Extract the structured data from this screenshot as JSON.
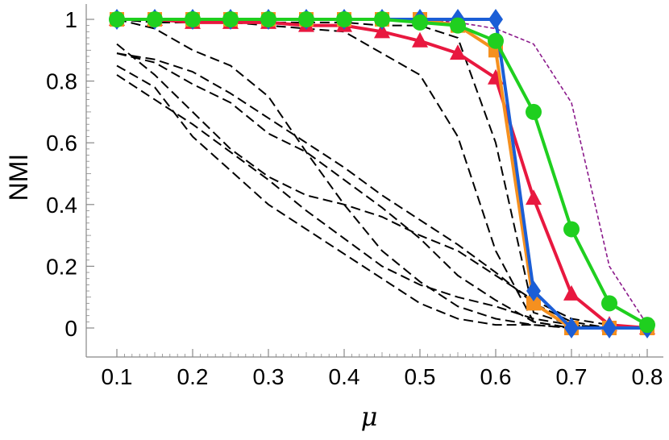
{
  "chart_data": {
    "type": "line",
    "xlabel": "μ",
    "ylabel": "NMI",
    "xlim": [
      0.1,
      0.8
    ],
    "ylim": [
      0,
      1
    ],
    "grid": false,
    "legend": "none",
    "x_ticks": [
      "0.1",
      "0.2",
      "0.3",
      "0.4",
      "0.5",
      "0.6",
      "0.7",
      "0.8"
    ],
    "y_ticks": [
      "0",
      "0.2",
      "0.4",
      "0.6",
      "0.8",
      "1"
    ],
    "x": [
      0.1,
      0.15,
      0.2,
      0.25,
      0.3,
      0.35,
      0.4,
      0.45,
      0.5,
      0.55,
      0.6,
      0.65,
      0.7,
      0.75,
      0.8
    ],
    "series": [
      {
        "color": "#e8183f",
        "marker": "triangle",
        "values": [
          1,
          1,
          0.99,
          0.99,
          0.99,
          0.98,
          0.98,
          0.96,
          0.93,
          0.89,
          0.81,
          0.42,
          0.11,
          0.01,
          0
        ]
      },
      {
        "color": "#f5901f",
        "marker": "square",
        "values": [
          1,
          1,
          1,
          1,
          1,
          1,
          1,
          1,
          1,
          0.98,
          0.9,
          0.08,
          0,
          0,
          0
        ]
      },
      {
        "color": "#1b5ed6",
        "marker": "diamond",
        "values": [
          1,
          1,
          1,
          1,
          1,
          1,
          1,
          1,
          1,
          1,
          1,
          0.12,
          0,
          0,
          0
        ]
      },
      {
        "color": "#1fcf1f",
        "marker": "circle",
        "values": [
          1,
          1,
          1,
          1,
          1,
          1,
          1,
          1,
          0.99,
          0.98,
          0.93,
          0.7,
          0.32,
          0.08,
          0.01
        ]
      },
      {
        "color": "#8b1a8b",
        "style": "dashed-thin",
        "values": [
          1,
          1,
          1,
          1,
          1,
          1,
          1,
          1,
          1,
          0.99,
          0.97,
          0.92,
          0.73,
          0.2,
          0.01
        ]
      },
      {
        "color": "#000000",
        "style": "dashed",
        "values": [
          1,
          0.99,
          0.99,
          0.99,
          0.99,
          0.99,
          0.99,
          0.98,
          0.98,
          0.94,
          0.6,
          0.05,
          0.01,
          0,
          0
        ]
      },
      {
        "color": "#000000",
        "style": "dashed",
        "values": [
          1,
          0.99,
          0.99,
          0.99,
          0.98,
          0.97,
          0.96,
          0.89,
          0.82,
          0.62,
          0.25,
          0.02,
          0,
          0,
          0
        ]
      },
      {
        "color": "#000000",
        "style": "dashed",
        "values": [
          1,
          0.97,
          0.9,
          0.85,
          0.75,
          0.57,
          0.4,
          0.25,
          0.15,
          0.07,
          0.03,
          0.01,
          0,
          0,
          0
        ]
      },
      {
        "color": "#000000",
        "style": "dashed",
        "values": [
          0.92,
          0.82,
          0.7,
          0.58,
          0.49,
          0.43,
          0.4,
          0.36,
          0.3,
          0.25,
          0.17,
          0.09,
          0.03,
          0.01,
          0
        ]
      },
      {
        "color": "#000000",
        "style": "dashed",
        "values": [
          0.89,
          0.86,
          0.79,
          0.73,
          0.63,
          0.57,
          0.48,
          0.39,
          0.29,
          0.17,
          0.09,
          0.02,
          0,
          0,
          0
        ]
      },
      {
        "color": "#000000",
        "style": "dashed",
        "values": [
          0.82,
          0.74,
          0.66,
          0.57,
          0.48,
          0.38,
          0.29,
          0.2,
          0.14,
          0.1,
          0.07,
          0.03,
          0.01,
          0,
          0
        ]
      },
      {
        "color": "#000000",
        "style": "dashed",
        "values": [
          0.89,
          0.87,
          0.83,
          0.76,
          0.68,
          0.6,
          0.52,
          0.43,
          0.35,
          0.27,
          0.18,
          0.08,
          0.02,
          0,
          0
        ]
      },
      {
        "color": "#000000",
        "style": "dashed",
        "values": [
          0.85,
          0.78,
          0.62,
          0.51,
          0.4,
          0.32,
          0.24,
          0.16,
          0.08,
          0.03,
          0.01,
          0.01,
          0,
          0,
          0
        ]
      }
    ]
  }
}
